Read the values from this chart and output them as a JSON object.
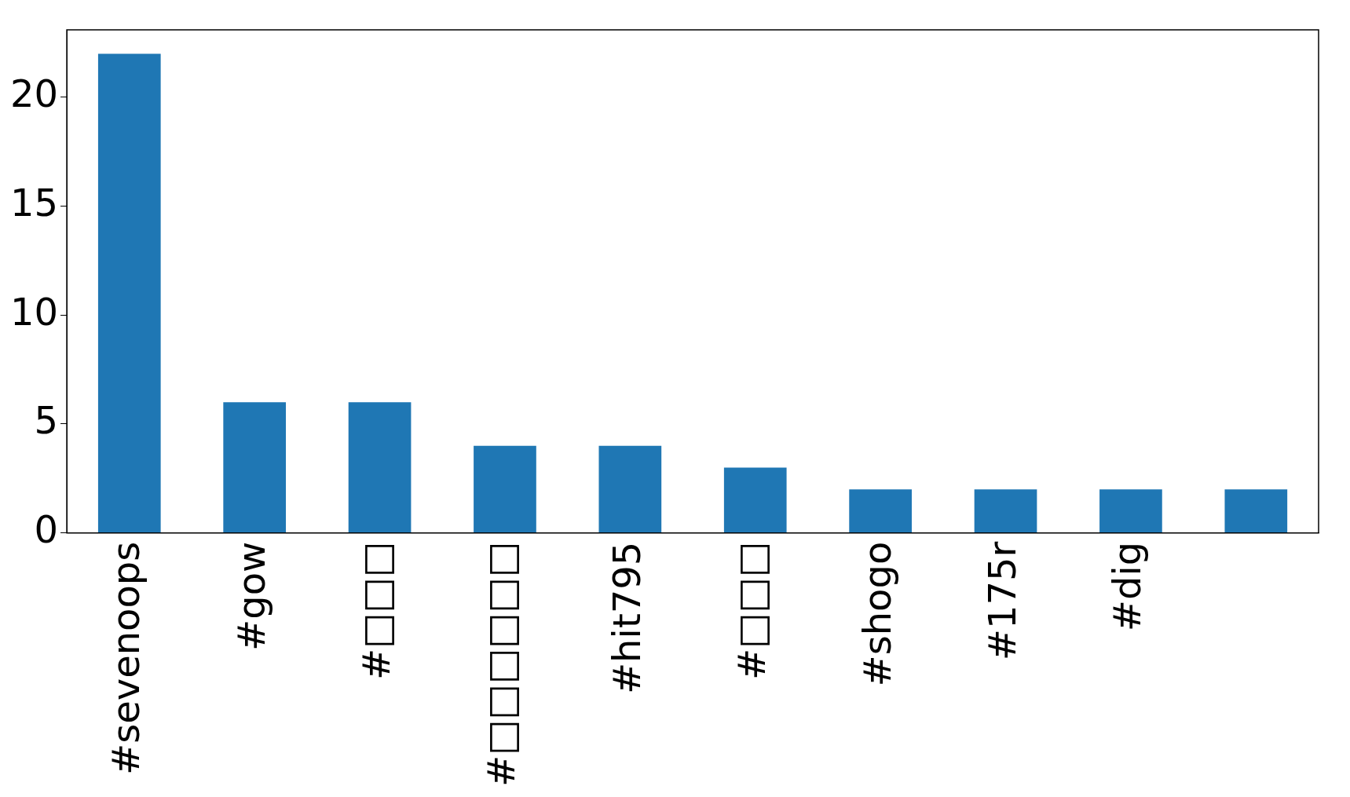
{
  "chart_data": {
    "type": "bar",
    "categories": [
      "#sevenoops",
      "#gow",
      "#□□□",
      "#□□□□□□",
      "#hit795",
      "#□□□",
      "#shogo",
      "#175r",
      "#dig",
      null
    ],
    "values": [
      22,
      6,
      6,
      4,
      4,
      3,
      2,
      2,
      2,
      2
    ],
    "color": "#1f77b4",
    "ylim": [
      0,
      23.1
    ],
    "yticks": [
      0,
      5,
      10,
      15,
      20
    ]
  }
}
